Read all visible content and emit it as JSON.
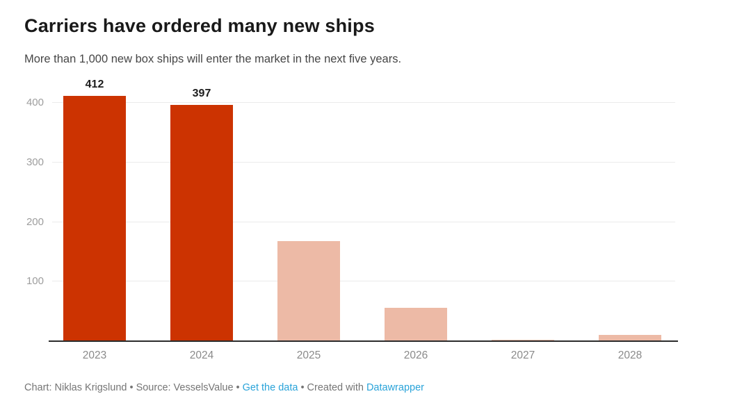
{
  "chart": {
    "title": "Carriers have ordered many new ships",
    "subtitle": "More than 1,000 new box ships will enter the market in the next five years."
  },
  "chart_data": {
    "type": "bar",
    "categories": [
      "2023",
      "2024",
      "2025",
      "2026",
      "2027",
      "2028"
    ],
    "values": [
      412,
      397,
      168,
      56,
      2,
      10
    ],
    "value_labels": [
      "412",
      "397",
      null,
      null,
      null,
      null
    ],
    "bar_colors": [
      "#cc3301",
      "#cc3301",
      "#edbaa6",
      "#edbaa6",
      "#edbaa6",
      "#edbaa6"
    ],
    "title": "Carriers have ordered many new ships",
    "subtitle": "More than 1,000 new box ships will enter the market in the next five years.",
    "xlabel": "",
    "ylabel": "",
    "y_ticks": [
      100,
      200,
      300,
      400
    ],
    "ylim": [
      0,
      448
    ],
    "grid": "horizontal",
    "legend": "none"
  },
  "colors": {
    "bar_primary": "#cc3301",
    "bar_secondary": "#edbaa6",
    "gridline": "#ebebeb",
    "baseline": "#2b2b2b",
    "axis_text": "#9d9d9d",
    "link_blue": "#29a3d9"
  },
  "footer": {
    "credit": "Chart: Niklas Krigslund",
    "separator": "•",
    "source": "Source: VesselsValue",
    "get_data_link": "Get the data",
    "created_with": "Created with",
    "datawrapper_link": "Datawrapper"
  }
}
